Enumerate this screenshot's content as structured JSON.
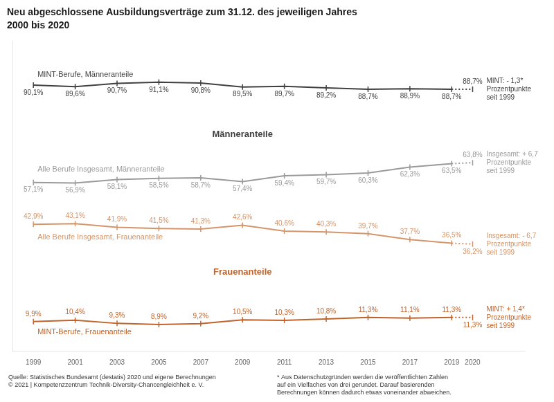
{
  "chart_data": {
    "type": "line",
    "title": "Neu abgeschlossene Ausbildungsverträge zum 31.12. des jeweiligen Jahres",
    "subtitle": "2000 bis 2020",
    "x": [
      1999,
      2001,
      2003,
      2005,
      2007,
      2009,
      2011,
      2013,
      2015,
      2017,
      2019,
      2020
    ],
    "xlim": [
      1998.0,
      2022.5
    ],
    "xticks": [
      1999,
      2001,
      2003,
      2005,
      2007,
      2009,
      2011,
      2013,
      2015,
      2017,
      2019,
      2020
    ],
    "ylim": [
      0,
      105
    ],
    "tick_labels": "x",
    "grid": false,
    "data_labels": true,
    "series": [
      {
        "name": "MINT-Berufe, Männeranteile",
        "color": "#404040",
        "values": [
          90.1,
          89.6,
          90.7,
          91.1,
          90.8,
          89.5,
          89.7,
          89.2,
          88.7,
          88.9,
          88.7,
          88.7
        ],
        "value_labels": [
          "90,1%",
          "89,6%",
          "90,7%",
          "91,1%",
          "90,8%",
          "89,5%",
          "89,7%",
          "89,2%",
          "88,7%",
          "88,9%",
          "88,7%",
          "88,7%"
        ]
      },
      {
        "name": "Alle Berufe Insgesamt, Männeranteile",
        "color": "#9a9a9a",
        "values": [
          57.1,
          56.9,
          58.1,
          58.5,
          58.7,
          57.4,
          59.4,
          59.7,
          60.3,
          62.3,
          63.5,
          63.8
        ],
        "value_labels": [
          "57,1%",
          "56,9%",
          "58,1%",
          "58,5%",
          "58,7%",
          "57,4%",
          "59,4%",
          "59,7%",
          "60,3%",
          "62,3%",
          "63,5%",
          "63,8%"
        ]
      },
      {
        "name": "Alle Berufe Insgesamt, Frauenanteile",
        "color": "#d4956a",
        "values": [
          42.9,
          43.1,
          41.9,
          41.5,
          41.3,
          42.6,
          40.6,
          40.3,
          39.7,
          37.7,
          36.5,
          36.2
        ],
        "value_labels": [
          "42,9%",
          "43,1%",
          "41,9%",
          "41,5%",
          "41,3%",
          "42,6%",
          "40,6%",
          "40,3%",
          "39,7%",
          "37,7%",
          "36,5%",
          "36,2%"
        ]
      },
      {
        "name": "MINT-Berufe, Frauenanteile",
        "color": "#c0632a",
        "values": [
          9.9,
          10.4,
          9.3,
          8.9,
          9.2,
          10.5,
          10.3,
          10.8,
          11.3,
          11.1,
          11.3,
          11.3
        ],
        "value_labels": [
          "9,9%",
          "10,4%",
          "9,3%",
          "8,9%",
          "9,2%",
          "10,5%",
          "10,3%",
          "10,8%",
          "11,3%",
          "11,1%",
          "11,3%",
          "11,3%"
        ]
      }
    ],
    "annotations": [
      "MINT: - 1,3*\nProzentpunkte\nseit 1999",
      "Insgesamt: + 6,7\nProzentpunkte\nseit 1999",
      "Insgesamt: - 6,7\nProzentpunkte\nseit 1999",
      "MINT: + 1,4*\nProzentpunkte\nseit 1999"
    ],
    "group_labels": [
      "Männeranteile",
      "Frauenanteile"
    ],
    "source": "Quelle: Statistisches Bundesamt (destatis) 2020 und eigene Berechnungen\n© 2021 | Kompetenzzentrum Technik-Diversity-Chancengleichheit e. V.",
    "footnote": "* Aus Datenschutzgründen werden die veröffentlichten Zahlen\nauf ein Vielfaches von drei gerundet. Darauf basierenden\nBerechnungen können dadurch etwas voneinander abweichen."
  }
}
